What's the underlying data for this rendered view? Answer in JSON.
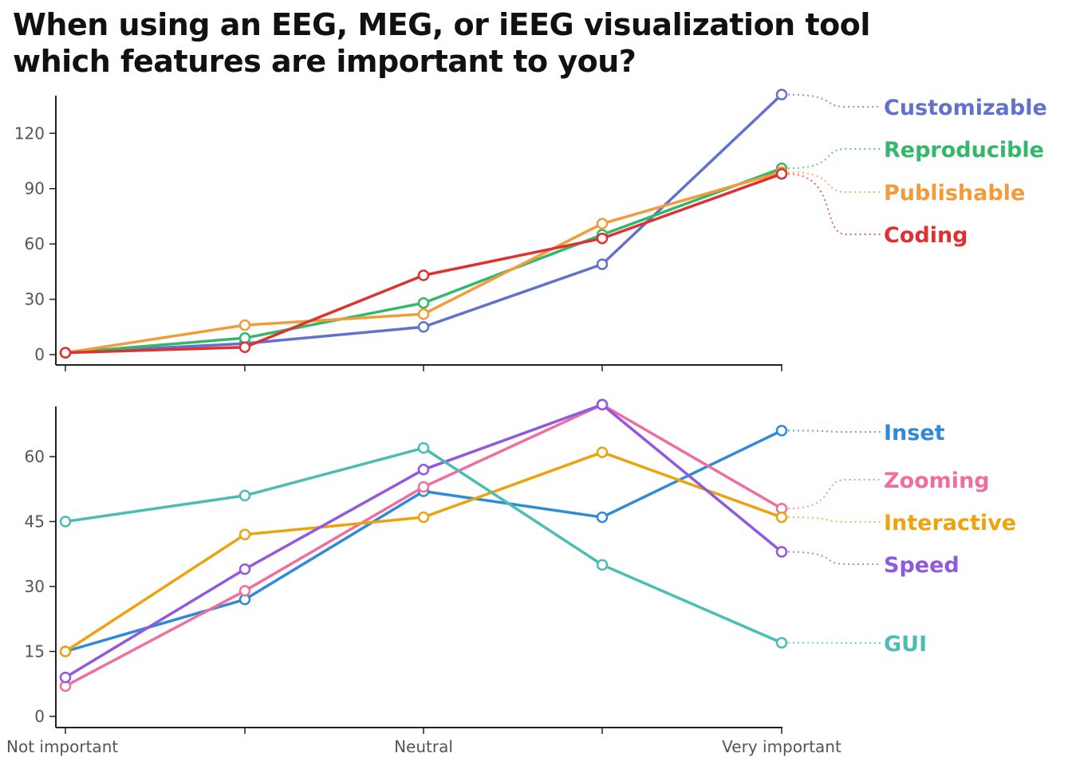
{
  "title": {
    "line1": "When using an EEG, MEG, or iEEG visualization tool",
    "line2": "which features are important to you?"
  },
  "chart_data": [
    {
      "type": "line",
      "panel": "top",
      "categories": [
        "1",
        "2",
        "3",
        "4",
        "5"
      ],
      "x_tick_labels": [
        "",
        "",
        "",
        "",
        ""
      ],
      "yticks": [
        0,
        30,
        60,
        90,
        120
      ],
      "ylim": [
        0,
        140
      ],
      "grid": false,
      "legend": "direct labels right",
      "series": [
        {
          "name": "Customizable",
          "color": "#6272cc",
          "values": [
            1,
            6,
            15,
            49,
            141
          ]
        },
        {
          "name": "Reproducible",
          "color": "#33b86b",
          "values": [
            1,
            9,
            28,
            65,
            101
          ]
        },
        {
          "name": "Publishable",
          "color": "#f39a3b",
          "values": [
            1,
            16,
            22,
            71,
            99
          ]
        },
        {
          "name": "Coding",
          "color": "#de3232",
          "values": [
            1,
            4,
            43,
            63,
            98
          ]
        }
      ]
    },
    {
      "type": "line",
      "panel": "bottom",
      "categories": [
        "1",
        "2",
        "3",
        "4",
        "5"
      ],
      "x_tick_labels": [
        "Not important",
        "",
        "Neutral",
        "",
        "Very important"
      ],
      "yticks": [
        0,
        15,
        30,
        45,
        60
      ],
      "ylim": [
        0,
        72
      ],
      "grid": false,
      "legend": "direct labels right",
      "series": [
        {
          "name": "Inset",
          "color": "#2f8ad8",
          "values": [
            15,
            27,
            52,
            46,
            66
          ]
        },
        {
          "name": "Zooming",
          "color": "#ee6f9f",
          "values": [
            7,
            29,
            53,
            72,
            48
          ]
        },
        {
          "name": "Interactive",
          "color": "#eda30e",
          "values": [
            15,
            42,
            46,
            61,
            46
          ]
        },
        {
          "name": "Speed",
          "color": "#9159dd",
          "values": [
            9,
            34,
            57,
            72,
            38
          ]
        },
        {
          "name": "GUI",
          "color": "#4cbdb3",
          "values": [
            45,
            51,
            62,
            35,
            17
          ]
        }
      ]
    }
  ]
}
